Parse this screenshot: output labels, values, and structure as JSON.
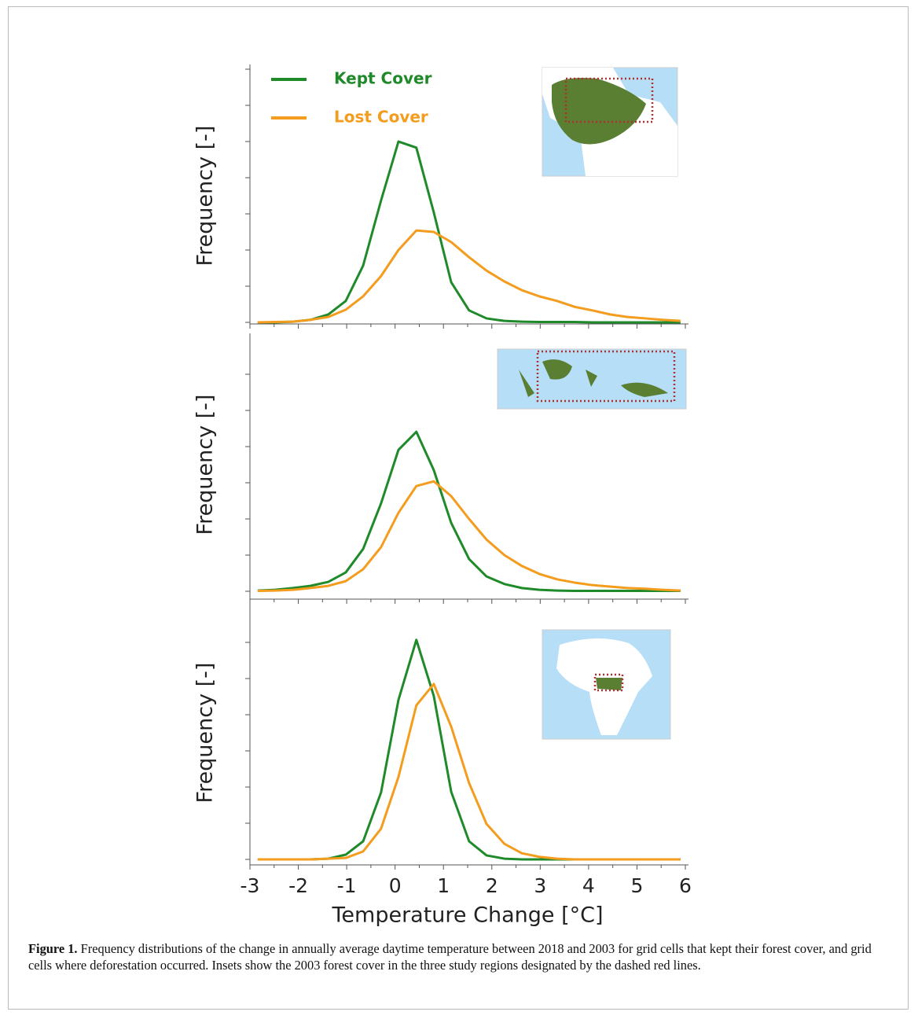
{
  "chart_data": [
    {
      "type": "line",
      "ylabel": "Frequency [-]",
      "x": [
        -2.84,
        -2.48,
        -2.11,
        -1.75,
        -1.38,
        -1.02,
        -0.66,
        -0.29,
        0.07,
        0.44,
        0.8,
        1.16,
        1.53,
        1.89,
        2.26,
        2.62,
        2.98,
        3.35,
        3.71,
        4.08,
        4.44,
        4.8,
        5.17,
        5.53,
        5.9
      ],
      "series": [
        {
          "name": "Kept Cover",
          "color": "#1e8a2a",
          "values": [
            0,
            0,
            0.02,
            0.07,
            0.22,
            0.59,
            1.57,
            3.37,
            5.0,
            4.83,
            3.04,
            1.11,
            0.33,
            0.11,
            0.04,
            0.02,
            0.01,
            0.01,
            0.01,
            0,
            0,
            0,
            0,
            0,
            0
          ]
        },
        {
          "name": "Lost Cover",
          "color": "#f39c1e",
          "values": [
            0,
            0.01,
            0.02,
            0.07,
            0.15,
            0.35,
            0.72,
            1.28,
            2.0,
            2.54,
            2.5,
            2.22,
            1.8,
            1.43,
            1.13,
            0.89,
            0.72,
            0.59,
            0.43,
            0.33,
            0.22,
            0.15,
            0.11,
            0.07,
            0.04
          ]
        }
      ],
      "xlim": [
        -3,
        6
      ],
      "xticks": [
        -3,
        -2,
        -1,
        0,
        1,
        2,
        3,
        4,
        5,
        6
      ],
      "ylim": [
        0,
        7
      ],
      "yticks": [
        0,
        1,
        2,
        3,
        4,
        5,
        6,
        7
      ]
    },
    {
      "type": "line",
      "ylabel": "Frequency [-]",
      "x": [
        -2.84,
        -2.48,
        -2.11,
        -1.75,
        -1.38,
        -1.02,
        -0.66,
        -0.29,
        0.07,
        0.44,
        0.8,
        1.16,
        1.53,
        1.89,
        2.26,
        2.62,
        2.98,
        3.35,
        3.71,
        4.08,
        4.44,
        4.8,
        5.17,
        5.53,
        5.9
      ],
      "series": [
        {
          "color": "#1e8a2a",
          "values": [
            0.02,
            0.04,
            0.09,
            0.15,
            0.26,
            0.52,
            1.17,
            2.43,
            3.91,
            4.41,
            3.35,
            1.89,
            0.89,
            0.41,
            0.2,
            0.09,
            0.04,
            0.02,
            0.01,
            0.01,
            0.01,
            0.01,
            0.01,
            0.01,
            0.01
          ]
        },
        {
          "color": "#f39c1e",
          "values": [
            0.01,
            0.02,
            0.04,
            0.09,
            0.15,
            0.28,
            0.61,
            1.22,
            2.17,
            2.91,
            3.04,
            2.63,
            2.0,
            1.43,
            1.0,
            0.7,
            0.48,
            0.33,
            0.24,
            0.17,
            0.13,
            0.09,
            0.07,
            0.04,
            0.02
          ]
        }
      ],
      "xlim": [
        -3,
        6
      ],
      "xticks": [
        -3,
        -2,
        -1,
        0,
        1,
        2,
        3,
        4,
        5,
        6
      ],
      "ylim": [
        0,
        7
      ],
      "yticks": [
        0,
        1,
        2,
        3,
        4,
        5,
        6
      ]
    },
    {
      "type": "line",
      "ylabel": "Frequency [-]",
      "xlabel": "Temperature Change [°C]",
      "x": [
        -2.84,
        -2.48,
        -2.11,
        -1.75,
        -1.38,
        -1.02,
        -0.66,
        -0.29,
        0.07,
        0.44,
        0.8,
        1.16,
        1.53,
        1.89,
        2.26,
        2.62,
        2.98,
        3.35,
        3.71,
        4.08,
        4.44,
        4.8,
        5.17,
        5.53,
        5.9
      ],
      "series": [
        {
          "color": "#1e8a2a",
          "values": [
            0,
            0,
            0,
            0,
            0.02,
            0.13,
            0.5,
            1.85,
            4.41,
            6.07,
            4.52,
            1.87,
            0.5,
            0.11,
            0.02,
            0,
            0,
            0,
            0,
            0,
            0,
            0,
            0,
            0,
            0
          ]
        },
        {
          "color": "#f39c1e",
          "values": [
            0,
            0,
            0,
            0,
            0.02,
            0.04,
            0.22,
            0.85,
            2.28,
            4.26,
            4.85,
            3.67,
            2.11,
            0.98,
            0.43,
            0.17,
            0.07,
            0.02,
            0,
            0,
            0,
            0,
            0,
            0,
            0
          ]
        }
      ],
      "xlim": [
        -3,
        6
      ],
      "xticks": [
        -3,
        -2,
        -1,
        0,
        1,
        2,
        3,
        4,
        5,
        6
      ],
      "ylim": [
        0,
        7
      ],
      "yticks": [
        0,
        1,
        2,
        3,
        4,
        5,
        6
      ]
    }
  ],
  "caption": {
    "label": "Figure 1.",
    "text": "Frequency distributions of the change in annually average daytime temperature between 2018 and 2003 for grid cells that kept their forest cover, and grid cells where deforestation occurred. Insets show the 2003 forest cover in the three study regions designated by the dashed red lines."
  }
}
